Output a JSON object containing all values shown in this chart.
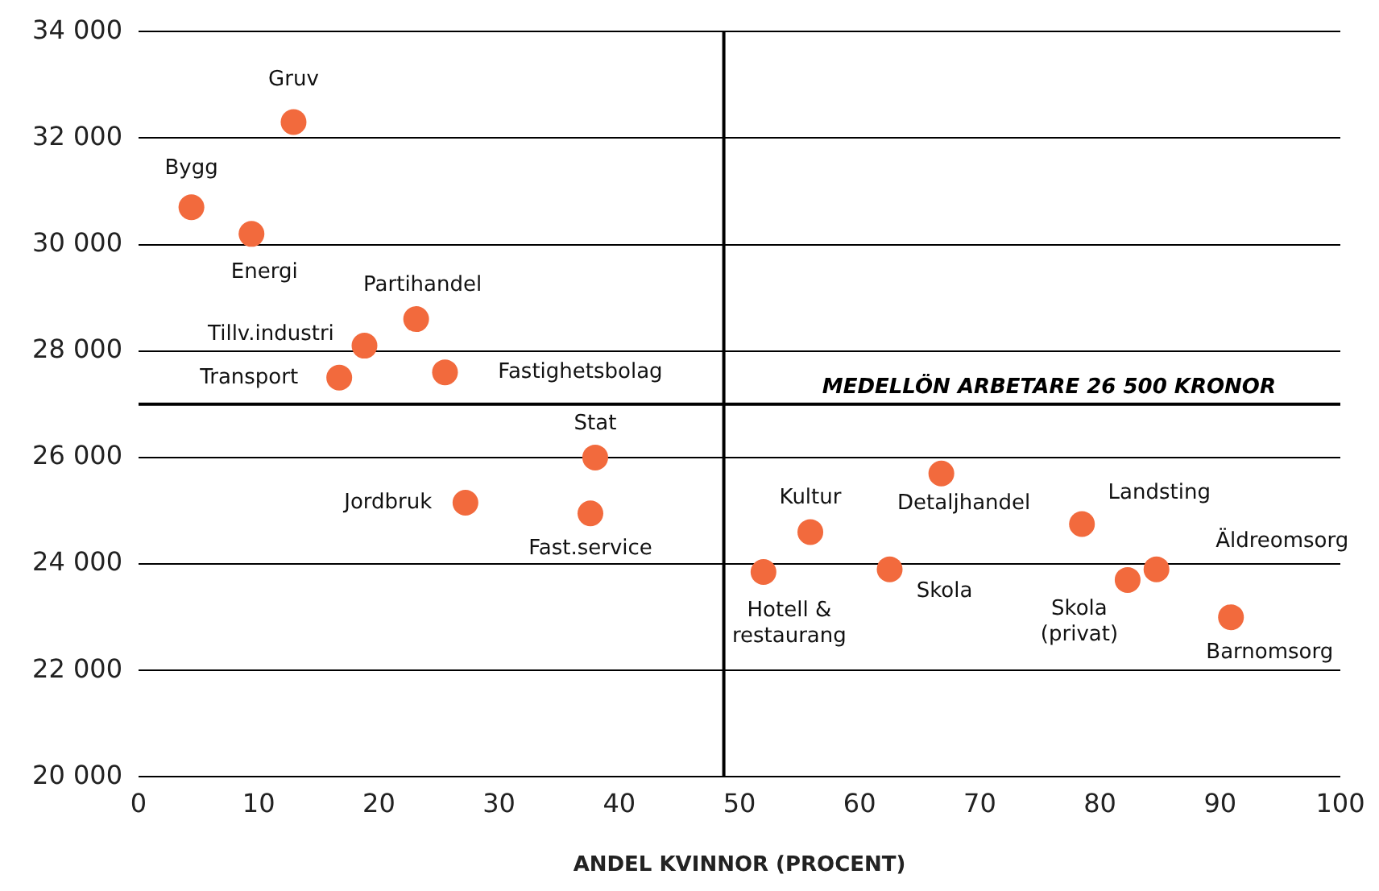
{
  "chart_data": {
    "type": "scatter",
    "xlabel": "ANDEL KVINNOR (PROCENT)",
    "series": [
      {
        "color": "#f26a3d",
        "x": [
          12.9,
          4.4,
          9.4,
          23.1,
          18.8,
          16.7,
          25.5,
          38.0,
          27.2,
          37.6,
          52.0,
          55.9,
          62.5,
          66.8,
          78.5,
          82.3,
          84.7,
          90.9
        ],
        "values": [
          32300,
          30700,
          30200,
          28600,
          28100,
          27500,
          27600,
          26000,
          25150,
          24950,
          23850,
          24600,
          23900,
          25700,
          24750,
          23700,
          23900,
          23000
        ]
      }
    ],
    "annotations": [
      {
        "text": "Gruv",
        "x": 12.9,
        "y": 32300
      },
      {
        "text": "Bygg",
        "x": 4.4,
        "y": 30700
      },
      {
        "text": "Energi",
        "x": 9.4,
        "y": 30200
      },
      {
        "text": "Partihandel",
        "x": 23.1,
        "y": 28600
      },
      {
        "text": "Tillv.industri",
        "x": 18.8,
        "y": 28100
      },
      {
        "text": "Transport",
        "x": 16.7,
        "y": 27500
      },
      {
        "text": "Fastighetsbolag",
        "x": 25.5,
        "y": 27600
      },
      {
        "text": "Stat",
        "x": 38.0,
        "y": 26000
      },
      {
        "text": "Jordbruk",
        "x": 27.2,
        "y": 25150
      },
      {
        "text": "Fast.service",
        "x": 37.6,
        "y": 24950
      },
      {
        "text": "Hotell &\nrestaurang",
        "x": 52.0,
        "y": 23850
      },
      {
        "text": "Kultur",
        "x": 55.9,
        "y": 24600
      },
      {
        "text": "Skola",
        "x": 62.5,
        "y": 23900
      },
      {
        "text": "Detaljhandel",
        "x": 66.8,
        "y": 25700
      },
      {
        "text": "Landsting",
        "x": 78.5,
        "y": 24750
      },
      {
        "text": "Skola\n(privat)",
        "x": 82.3,
        "y": 23700
      },
      {
        "text": "Äldreomsorg",
        "x": 84.7,
        "y": 23900
      },
      {
        "text": "Barnomsorg",
        "x": 90.9,
        "y": 23000
      }
    ],
    "ref_lines": [
      {
        "axis": "x",
        "value": 48.7,
        "label": null,
        "color": "#000000"
      },
      {
        "axis": "y",
        "value": 27000,
        "label": "MEDELLÖN ARBETARE 26 500 KRONOR",
        "color": "#000000"
      }
    ],
    "xlim": [
      0,
      100
    ],
    "xticks": [
      0,
      10,
      20,
      30,
      40,
      50,
      60,
      70,
      80,
      90,
      100
    ],
    "ylim": [
      20000,
      34000
    ],
    "yticks": [
      {
        "value": 20000,
        "label": "20 000"
      },
      {
        "value": 22000,
        "label": "22 000"
      },
      {
        "value": 24000,
        "label": "24 000"
      },
      {
        "value": 26000,
        "label": "26 000"
      },
      {
        "value": 28000,
        "label": "28 000"
      },
      {
        "value": 30000,
        "label": "30 000"
      },
      {
        "value": 32000,
        "label": "32 000"
      },
      {
        "value": 34000,
        "label": "34 000"
      }
    ],
    "grid": "y",
    "marker": "circle",
    "legend": false
  }
}
